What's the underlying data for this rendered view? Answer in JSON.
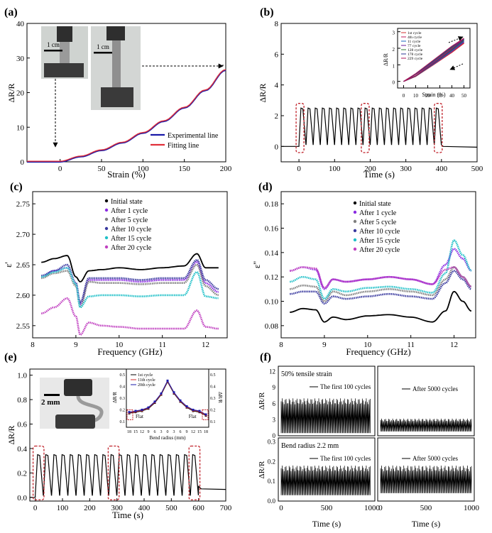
{
  "panels": {
    "a": {
      "letter": "(a)",
      "xlabel": "Strain (%)",
      "ylabel": "ΔR/R",
      "xticks": [
        0,
        50,
        100,
        150,
        200
      ],
      "yticks": [
        0,
        10,
        20,
        30,
        40
      ],
      "scalebar1": "1 cm",
      "scalebar2": "1 cm",
      "legend": [
        "Experimental line",
        "Fitting line"
      ],
      "colors": {
        "exp": "#1a1aa8",
        "fit": "#e0303a"
      }
    },
    "b": {
      "letter": "(b)",
      "xlabel": "Time (s)",
      "ylabel": "ΔR/R",
      "xticks": [
        0,
        100,
        200,
        300,
        400,
        500
      ],
      "yticks": [
        0,
        2,
        4,
        6,
        8
      ],
      "inset": {
        "xlabel": "Strain (%)",
        "ylabel": "ΔR/R",
        "xticks": [
          0,
          10,
          20,
          30,
          40,
          50
        ],
        "yticks": [
          0,
          1,
          2,
          3
        ],
        "legend": [
          "1st cycle",
          "4th cycle",
          "11 cycle",
          "77 cycle",
          "128 cycle",
          "178 cycle",
          "229 cycle"
        ]
      }
    },
    "c": {
      "letter": "(c)",
      "xlabel": "Frequency (GHz)",
      "ylabel": "ε'",
      "xticks": [
        8,
        9,
        10,
        11,
        12
      ],
      "yticks": [
        2.55,
        2.6,
        2.65,
        2.7,
        2.75
      ],
      "legend": [
        "Initial state",
        "After 1 cycle",
        "After 5 cycle",
        "After 10 cycle",
        "After 15 cycle",
        "After 20 cycle"
      ]
    },
    "d": {
      "letter": "(d)",
      "xlabel": "Frequency (GHz)",
      "ylabel": "ε''",
      "xticks": [
        8,
        9,
        10,
        11,
        12
      ],
      "yticks": [
        0.08,
        0.1,
        0.12,
        0.14,
        0.16,
        0.18
      ],
      "legend": [
        "Initial state",
        "After 1 cycle",
        "After 5 cycle",
        "After 10 cycle",
        "After 15 cycle",
        "After 20 cycle"
      ]
    },
    "e": {
      "letter": "(e)",
      "xlabel": "Time (s)",
      "ylabel": "ΔR/R",
      "xticks": [
        0,
        100,
        200,
        300,
        400,
        500,
        600,
        700
      ],
      "yticks": [
        0.0,
        0.2,
        0.4,
        0.6,
        0.8,
        1.0
      ],
      "scalebar": "2 mm",
      "inset": {
        "xlabel": "Bend radius (mm)",
        "ylabel": "ΔR/R",
        "y2label": "ΔR/R",
        "xticks": [
          "18",
          "15",
          "12",
          "9",
          "6",
          "3",
          "0",
          "3",
          "6",
          "9",
          "12",
          "15",
          "18"
        ],
        "yticks": [
          0.1,
          0.2,
          0.3,
          0.4,
          0.5
        ],
        "flat_left": "Flat",
        "flat_right": "Flat",
        "legend": [
          "1st cycle",
          "11th cycle",
          "20th cycle"
        ]
      }
    },
    "f": {
      "letter": "(f)",
      "xlabel1": "Time (s)",
      "xlabel2": "Time (s)",
      "ylabel": "ΔR/R",
      "top": {
        "title": "50% tensile strain",
        "label1": "The first 100 cycles",
        "label2": "After 5000 cycles",
        "yticks": [
          0,
          3,
          6,
          9,
          12
        ]
      },
      "bottom": {
        "title": "Bend radius 2.2 mm",
        "label1": "The first 100 cycles",
        "label2": "After 5000 cycles",
        "yticks": [
          0.0,
          0.1,
          0.2,
          0.3
        ]
      },
      "xticks1": [
        0,
        500,
        1000
      ],
      "xticks2": [
        0,
        500,
        1000
      ]
    }
  },
  "chart_data": [
    {
      "panel": "a",
      "type": "line",
      "xlim": [
        -40,
        200
      ],
      "ylim": [
        0,
        40
      ],
      "series": [
        {
          "name": "Experimental line",
          "x": [
            -40,
            0,
            25,
            50,
            75,
            100,
            125,
            150,
            175,
            200
          ],
          "y": [
            0,
            0,
            1.5,
            3.3,
            5.5,
            8.3,
            11.7,
            15.6,
            20.6,
            26.5
          ]
        },
        {
          "name": "Fitting line",
          "x": [
            -40,
            0,
            25,
            50,
            75,
            100,
            125,
            150,
            175,
            200
          ],
          "y": [
            0,
            0,
            1.5,
            3.3,
            5.5,
            8.3,
            11.7,
            15.6,
            20.6,
            26.5
          ]
        }
      ]
    },
    {
      "panel": "b",
      "type": "line",
      "xlim": [
        -50,
        500
      ],
      "ylim": [
        -1,
        8
      ],
      "cycles": 20,
      "peak": 2.5,
      "start": 0,
      "end": 400
    },
    {
      "panel": "c",
      "type": "line",
      "xlim": [
        8,
        12.5
      ],
      "ylim": [
        2.53,
        2.77
      ],
      "x": [
        8.2,
        8.5,
        8.8,
        9.0,
        9.1,
        9.3,
        9.6,
        10.0,
        10.5,
        11.0,
        11.5,
        11.8,
        12.0,
        12.3
      ],
      "series": [
        {
          "name": "Initial state",
          "values": [
            2.654,
            2.66,
            2.665,
            2.63,
            2.622,
            2.64,
            2.642,
            2.645,
            2.642,
            2.645,
            2.648,
            2.668,
            2.645,
            2.645
          ]
        },
        {
          "name": "After 1 cycle",
          "values": [
            2.63,
            2.64,
            2.645,
            2.62,
            2.585,
            2.625,
            2.625,
            2.625,
            2.622,
            2.625,
            2.625,
            2.655,
            2.62,
            2.605
          ]
        },
        {
          "name": "After 5 cycle",
          "values": [
            2.628,
            2.636,
            2.64,
            2.615,
            2.58,
            2.622,
            2.62,
            2.62,
            2.618,
            2.62,
            2.62,
            2.65,
            2.615,
            2.6
          ]
        },
        {
          "name": "After 10 cycle",
          "values": [
            2.632,
            2.64,
            2.65,
            2.62,
            2.588,
            2.628,
            2.628,
            2.628,
            2.625,
            2.628,
            2.628,
            2.658,
            2.625,
            2.61
          ]
        },
        {
          "name": "After 15 cycle",
          "values": [
            2.63,
            2.638,
            2.645,
            2.618,
            2.58,
            2.598,
            2.6,
            2.6,
            2.598,
            2.6,
            2.6,
            2.638,
            2.598,
            2.595
          ]
        },
        {
          "name": "After 20 cycle",
          "values": [
            2.57,
            2.58,
            2.595,
            2.565,
            2.535,
            2.555,
            2.55,
            2.548,
            2.545,
            2.545,
            2.545,
            2.575,
            2.548,
            2.545
          ]
        }
      ]
    },
    {
      "panel": "d",
      "type": "line",
      "xlim": [
        8,
        12.5
      ],
      "ylim": [
        0.07,
        0.19
      ],
      "x": [
        8.2,
        8.5,
        8.8,
        9.0,
        9.2,
        9.5,
        10.0,
        10.5,
        11.0,
        11.5,
        11.8,
        12.0,
        12.2,
        12.4
      ],
      "series": [
        {
          "name": "Initial state",
          "values": [
            0.091,
            0.094,
            0.093,
            0.083,
            0.087,
            0.085,
            0.088,
            0.089,
            0.087,
            0.083,
            0.092,
            0.108,
            0.1,
            0.092
          ]
        },
        {
          "name": "After 1 cycle",
          "values": [
            0.125,
            0.128,
            0.126,
            0.11,
            0.118,
            0.116,
            0.118,
            0.12,
            0.118,
            0.114,
            0.13,
            0.143,
            0.135,
            0.125
          ]
        },
        {
          "name": "After 5 cycle",
          "values": [
            0.11,
            0.113,
            0.112,
            0.1,
            0.108,
            0.105,
            0.108,
            0.11,
            0.108,
            0.105,
            0.118,
            0.128,
            0.12,
            0.112
          ]
        },
        {
          "name": "After 10 cycle",
          "values": [
            0.106,
            0.108,
            0.108,
            0.098,
            0.104,
            0.102,
            0.104,
            0.106,
            0.104,
            0.102,
            0.115,
            0.125,
            0.118,
            0.11
          ]
        },
        {
          "name": "After 15 cycle",
          "values": [
            0.116,
            0.12,
            0.118,
            0.102,
            0.11,
            0.108,
            0.111,
            0.112,
            0.11,
            0.107,
            0.123,
            0.15,
            0.138,
            0.125
          ]
        },
        {
          "name": "After 20 cycle",
          "values": [
            0.125,
            0.128,
            0.127,
            0.111,
            0.118,
            0.116,
            0.118,
            0.12,
            0.118,
            0.114,
            0.126,
            0.128,
            0.12,
            0.112
          ]
        }
      ]
    },
    {
      "panel": "e",
      "type": "line",
      "xlim": [
        -20,
        700
      ],
      "ylim": [
        -0.03,
        1.05
      ],
      "cycles": 20,
      "peak": 0.35,
      "start": 0,
      "end": 600,
      "tail": 0.07
    },
    {
      "panel": "f",
      "type": "line",
      "top": {
        "ylim": [
          0,
          13
        ],
        "first": 7,
        "after": 3.2
      },
      "bottom": {
        "ylim": [
          0,
          0.32
        ],
        "first": 0.18,
        "after": 0.18
      }
    }
  ]
}
